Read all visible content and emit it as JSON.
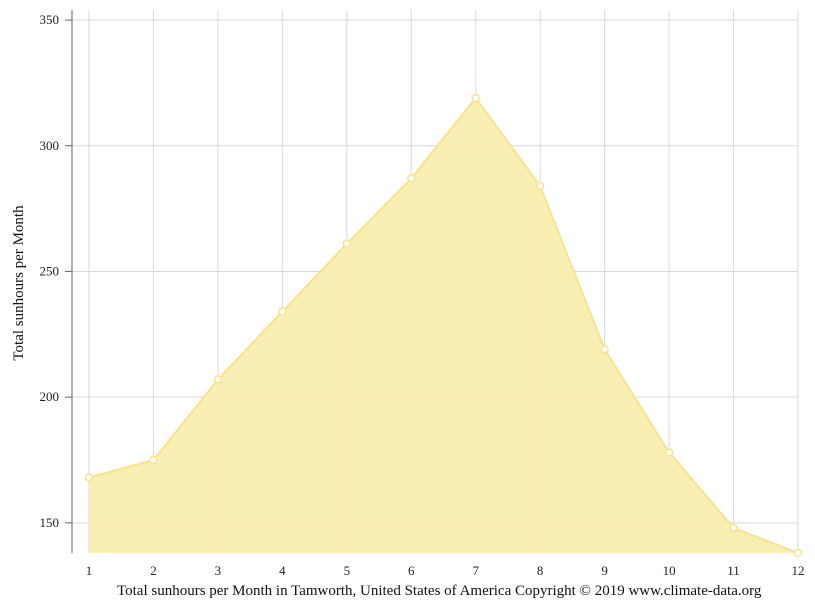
{
  "chart_data": {
    "type": "area",
    "title": "",
    "xlabel": "",
    "ylabel": "Total sunhours per Month",
    "x": [
      1,
      2,
      3,
      4,
      5,
      6,
      7,
      8,
      9,
      10,
      11,
      12
    ],
    "series": [
      {
        "values": [
          168,
          175,
          207,
          234,
          261,
          287,
          319,
          284,
          219,
          178,
          148,
          138
        ]
      }
    ],
    "ylim": [
      138,
      354
    ],
    "yticks": [
      150,
      200,
      250,
      300,
      350
    ],
    "xticks": [
      1,
      2,
      3,
      4,
      5,
      6,
      7,
      8,
      9,
      10,
      11,
      12
    ],
    "grid": true,
    "legend": "none",
    "colors": {
      "fill": "#faeeaf",
      "line": "#f7e38c",
      "marker_fill": "#ffffff",
      "grid": "#d9d9d9",
      "axis": "#666666"
    },
    "caption": "Total sunhours per Month in Tamworth, United States of America Copyright © 2019 www.climate-data.org"
  }
}
